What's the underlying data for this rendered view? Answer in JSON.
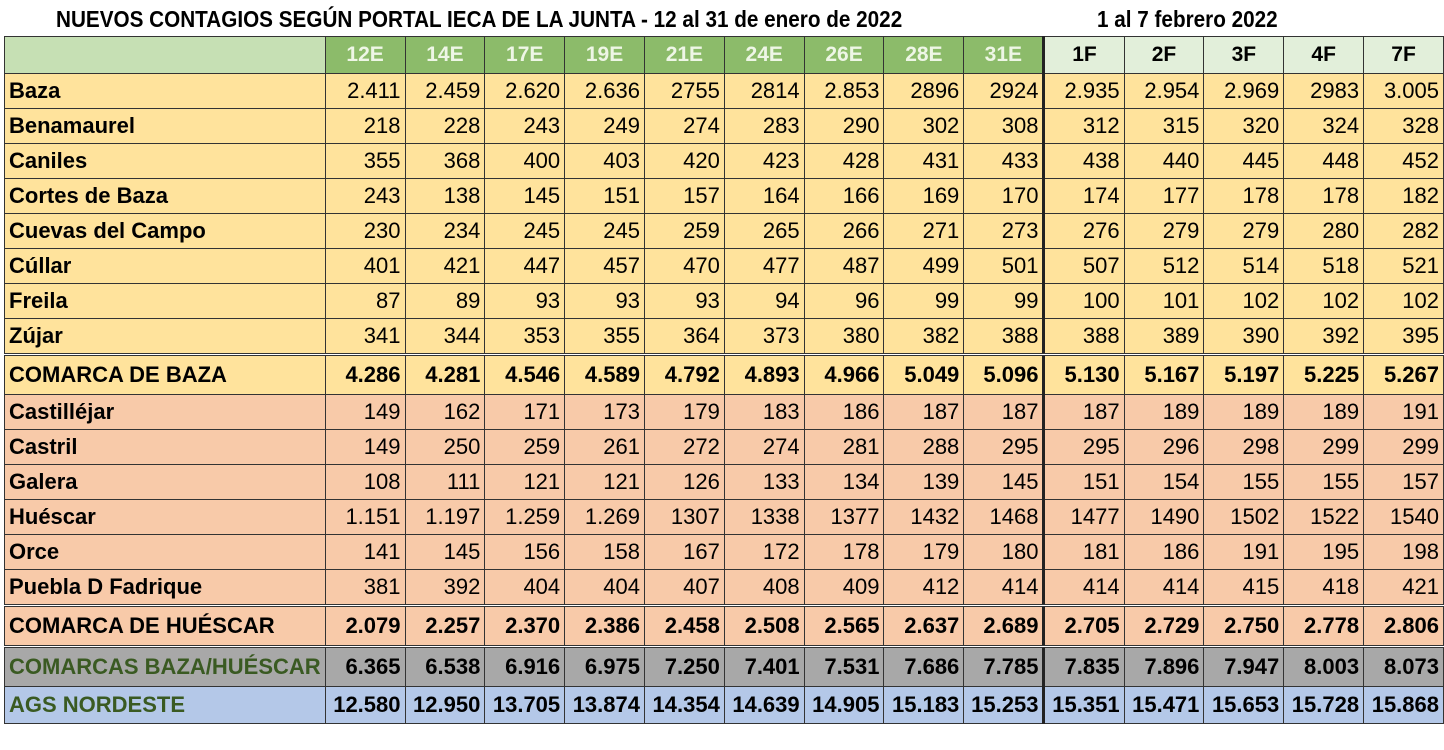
{
  "title_main": "NUEVOS CONTAGIOS  SEGÚN PORTAL IECA DE LA JUNTA - 12 al 31 de enero de 2022",
  "title_feb": "1 al 7 febrero 2022",
  "columns": [
    "12E",
    "14E",
    "17E",
    "19E",
    "21E",
    "24E",
    "26E",
    "28E",
    "31E",
    "1F",
    "2F",
    "3F",
    "4F",
    "7F"
  ],
  "rows": [
    {
      "label": "Baza",
      "style": "yellow",
      "values": [
        "2.411",
        "2.459",
        "2.620",
        "2.636",
        "2755",
        "2814",
        "2.853",
        "2896",
        "2924",
        "2.935",
        "2.954",
        "2.969",
        "2983",
        "3.005"
      ]
    },
    {
      "label": "Benamaurel",
      "style": "yellow",
      "values": [
        "218",
        "228",
        "243",
        "249",
        "274",
        "283",
        "290",
        "302",
        "308",
        "312",
        "315",
        "320",
        "324",
        "328"
      ]
    },
    {
      "label": "Caniles",
      "style": "yellow",
      "values": [
        "355",
        "368",
        "400",
        "403",
        "420",
        "423",
        "428",
        "431",
        "433",
        "438",
        "440",
        "445",
        "448",
        "452"
      ]
    },
    {
      "label": "Cortes de Baza",
      "style": "yellow",
      "values": [
        "243",
        "138",
        "145",
        "151",
        "157",
        "164",
        "166",
        "169",
        "170",
        "174",
        "177",
        "178",
        "178",
        "182"
      ]
    },
    {
      "label": "Cuevas del Campo",
      "style": "yellow",
      "values": [
        "230",
        "234",
        "245",
        "245",
        "259",
        "265",
        "266",
        "271",
        "273",
        "276",
        "279",
        "279",
        "280",
        "282"
      ]
    },
    {
      "label": "Cúllar",
      "style": "yellow",
      "values": [
        "401",
        "421",
        "447",
        "457",
        "470",
        "477",
        "487",
        "499",
        "501",
        "507",
        "512",
        "514",
        "518",
        "521"
      ]
    },
    {
      "label": "Freila",
      "style": "yellow",
      "values": [
        "87",
        "89",
        "93",
        "93",
        "93",
        "94",
        "96",
        "99",
        "99",
        "100",
        "101",
        "102",
        "102",
        "102"
      ]
    },
    {
      "label": "Zújar",
      "style": "yellow",
      "values": [
        "341",
        "344",
        "353",
        "355",
        "364",
        "373",
        "380",
        "382",
        "388",
        "388",
        "389",
        "390",
        "392",
        "395"
      ]
    },
    {
      "label": "COMARCA DE BAZA",
      "style": "yellow sub",
      "values": [
        "4.286",
        "4.281",
        "4.546",
        "4.589",
        "4.792",
        "4.893",
        "4.966",
        "5.049",
        "5.096",
        "5.130",
        "5.167",
        "5.197",
        "5.225",
        "5.267"
      ]
    },
    {
      "label": "Castilléjar",
      "style": "orange first",
      "values": [
        "149",
        "162",
        "171",
        "173",
        "179",
        "183",
        "186",
        "187",
        "187",
        "187",
        "189",
        "189",
        "189",
        "191"
      ]
    },
    {
      "label": "Castril",
      "style": "orange",
      "values": [
        "149",
        "250",
        "259",
        "261",
        "272",
        "274",
        "281",
        "288",
        "295",
        "295",
        "296",
        "298",
        "299",
        "299"
      ]
    },
    {
      "label": "Galera",
      "style": "orange",
      "values": [
        "108",
        "111",
        "121",
        "121",
        "126",
        "133",
        "134",
        "139",
        "145",
        "151",
        "154",
        "155",
        "155",
        "157"
      ]
    },
    {
      "label": "Huéscar",
      "style": "orange",
      "values": [
        "1.151",
        "1.197",
        "1.259",
        "1.269",
        "1307",
        "1338",
        "1377",
        "1432",
        "1468",
        "1477",
        "1490",
        "1502",
        "1522",
        "1540"
      ]
    },
    {
      "label": "Orce",
      "style": "orange",
      "values": [
        "141",
        "145",
        "156",
        "158",
        "167",
        "172",
        "178",
        "179",
        "180",
        "181",
        "186",
        "191",
        "195",
        "198"
      ]
    },
    {
      "label": "Puebla D Fadrique",
      "style": "orange",
      "values": [
        "381",
        "392",
        "404",
        "404",
        "407",
        "408",
        "409",
        "412",
        "414",
        "414",
        "414",
        "415",
        "418",
        "421"
      ]
    },
    {
      "label": "COMARCA DE HUÉSCAR",
      "style": "orange sub",
      "values": [
        "2.079",
        "2.257",
        "2.370",
        "2.386",
        "2.458",
        "2.508",
        "2.565",
        "2.637",
        "2.689",
        "2.705",
        "2.729",
        "2.750",
        "2.778",
        "2.806"
      ]
    },
    {
      "label": "COMARCAS BAZA/HUÉSCAR",
      "style": "gray",
      "values": [
        "6.365",
        "6.538",
        "6.916",
        "6.975",
        "7.250",
        "7.401",
        "7.531",
        "7.686",
        "7.785",
        "7.835",
        "7.896",
        "7.947",
        "8.003",
        "8.073"
      ]
    },
    {
      "label": "AGS NORDESTE",
      "style": "blue",
      "values": [
        "12.580",
        "12.950",
        "13.705",
        "13.874",
        "14.354",
        "14.639",
        "14.905",
        "15.183",
        "15.253",
        "15.351",
        "15.471",
        "15.653",
        "15.728",
        "15.868"
      ]
    }
  ]
}
